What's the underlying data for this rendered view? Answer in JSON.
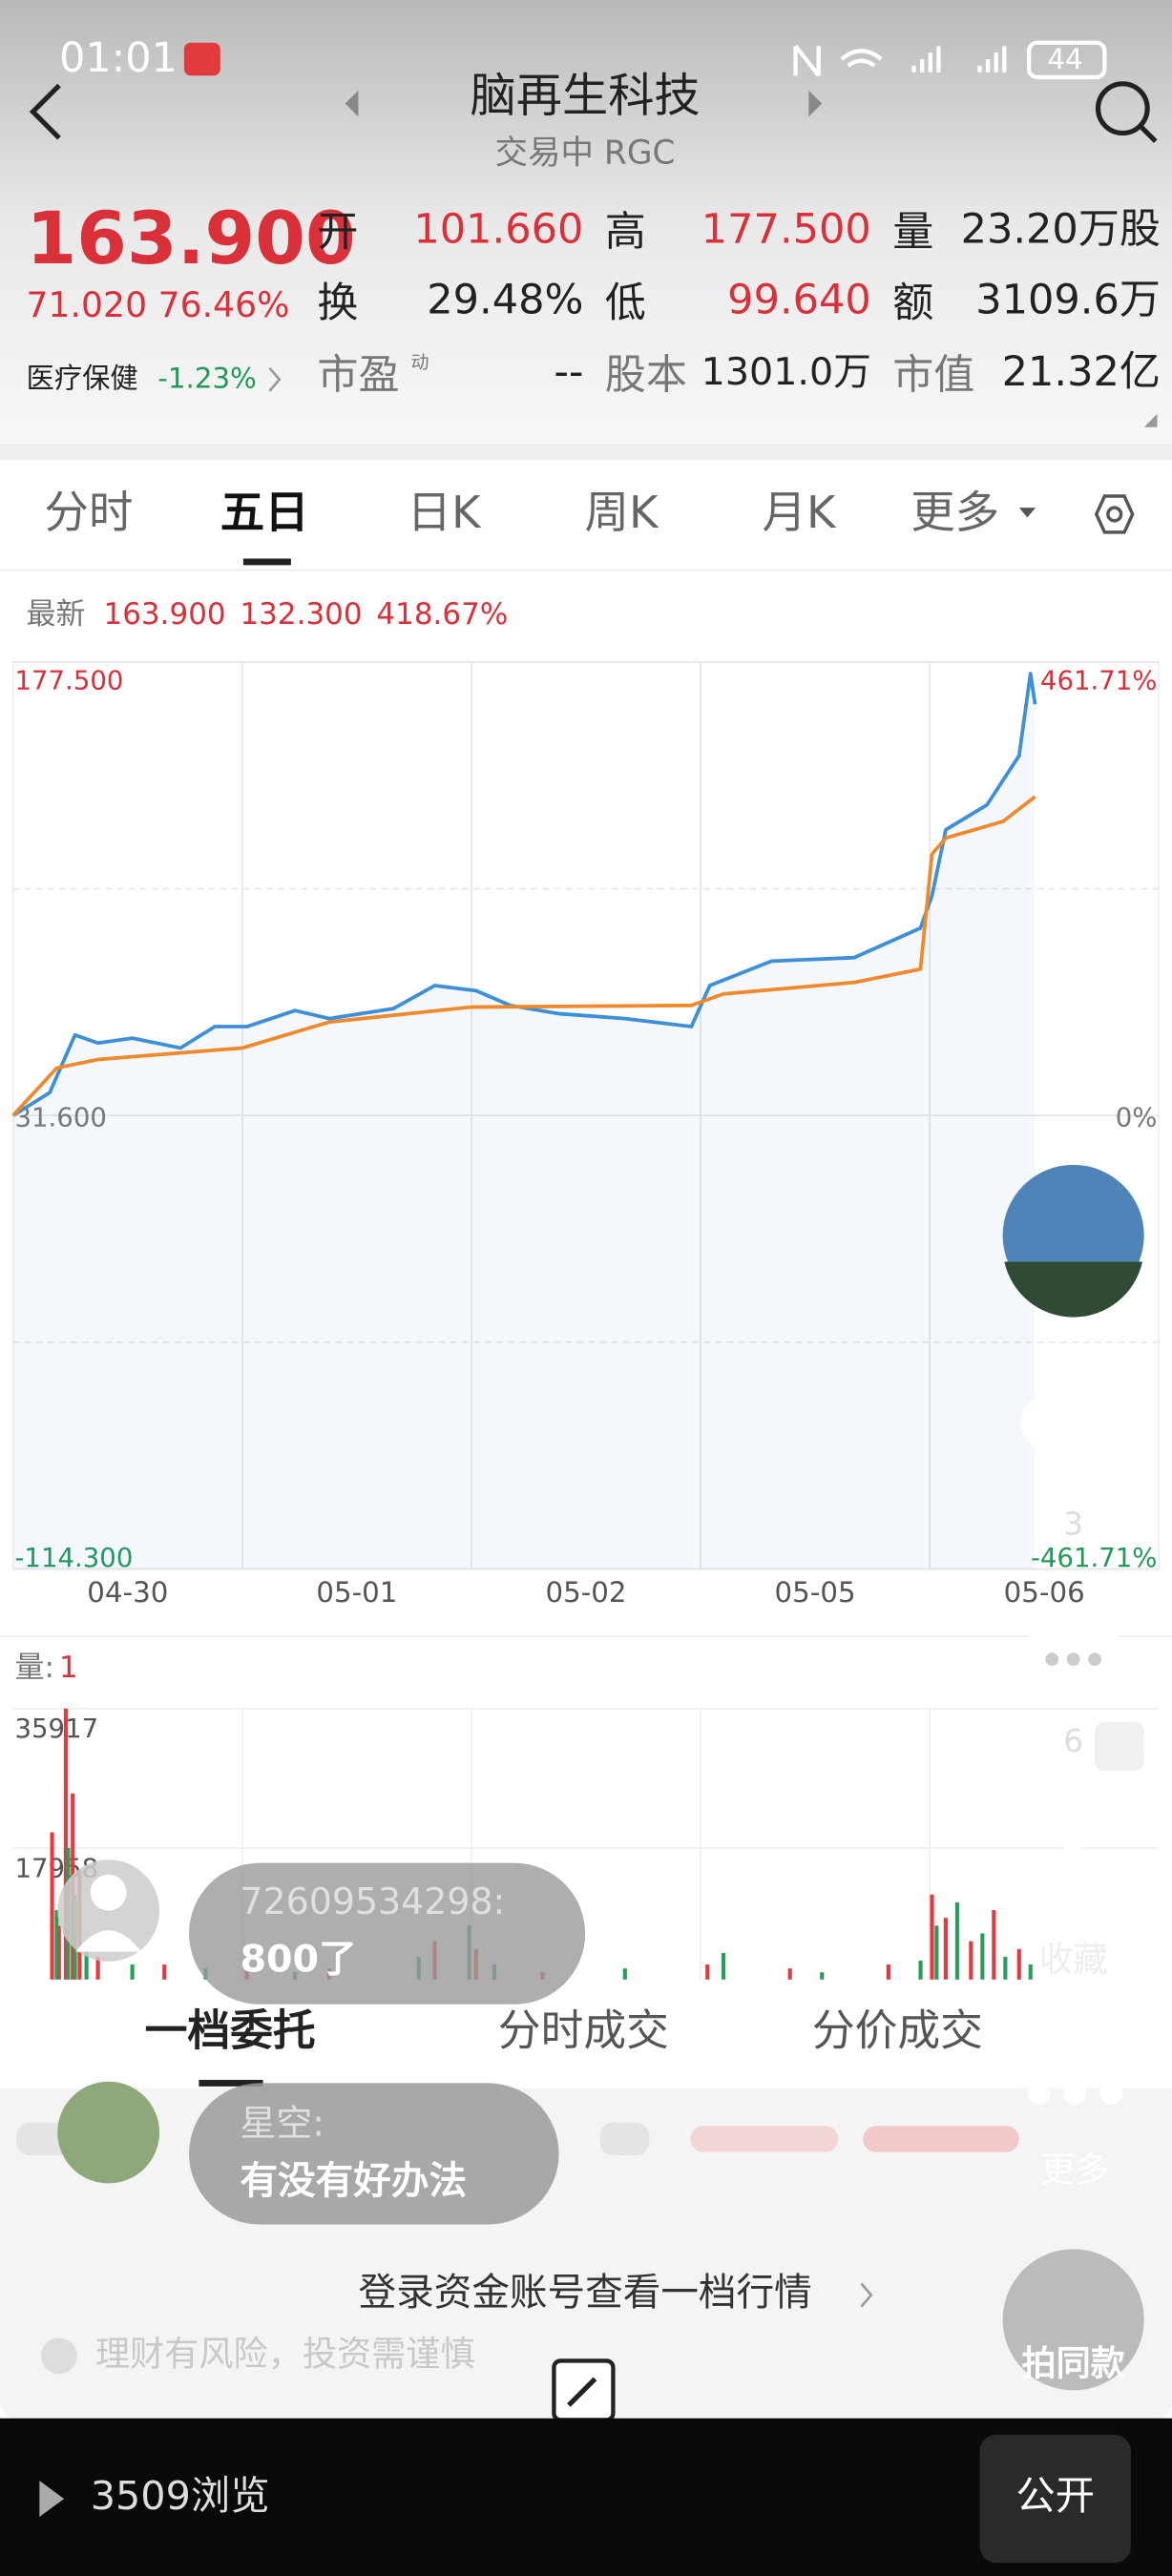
{
  "status_bar": {
    "time": "01:01",
    "battery": "44"
  },
  "header": {
    "title": "脑再生科技",
    "subtitle": "交易中 RGC"
  },
  "quote": {
    "price": "163.900",
    "change": "71.020 76.46%",
    "open_label": "开",
    "open": "101.660",
    "high_label": "高",
    "high": "177.500",
    "volume_label": "量",
    "volume": "23.20万股",
    "turnover_label": "换",
    "turnover": "29.48%",
    "low_label": "低",
    "low": "99.640",
    "amount_label": "额",
    "amount": "3109.6万",
    "sector": "医疗保健",
    "sector_change": "-1.23%",
    "pe_label": "市盈",
    "pe_sup": "动",
    "pe": "--",
    "shares_label": "股本",
    "shares": "1301.0万",
    "cap_label": "市值",
    "cap": "21.32亿"
  },
  "tabs": [
    "分时",
    "五日",
    "日K",
    "周K",
    "月K",
    "更多"
  ],
  "latest": {
    "label": "最新",
    "price": "163.900",
    "avg": "132.300",
    "pct": "418.67%"
  },
  "volume_header": {
    "label": "量:",
    "value": "1"
  },
  "chart_data": [
    {
      "type": "line",
      "xlim": [
        0,
        5
      ],
      "xticks": [
        {
          "value": 0.5,
          "label": "04-30"
        },
        {
          "value": 1.5,
          "label": "05-01"
        },
        {
          "value": 2.5,
          "label": "05-02"
        },
        {
          "value": 3.5,
          "label": "05-05"
        },
        {
          "value": 4.5,
          "label": "05-06"
        }
      ],
      "xgrid_lines": [
        1,
        2,
        3,
        4
      ],
      "ylim": [
        -114.3,
        177.5
      ],
      "yticks": [
        {
          "value": 177.5,
          "label": "177.500"
        },
        {
          "value": 31.6,
          "label": "31.600"
        },
        {
          "value": -114.3,
          "label": "-114.300"
        }
      ],
      "ygrid_lines": [
        104.55,
        -41.35
      ],
      "y2lim": [
        -461.71,
        461.71
      ],
      "y2ticks": [
        {
          "value": 461.71,
          "label": "461.71%"
        },
        {
          "value": 0,
          "label": "0%"
        },
        {
          "value": -461.71,
          "label": "-461.71%"
        }
      ],
      "grid": true,
      "series": [
        {
          "color": "#3d8fd8",
          "x": [
            0,
            0.16,
            0.27,
            0.37,
            0.52,
            0.73,
            0.88,
            1.02,
            1.23,
            1.38,
            1.66,
            1.84,
            2.02,
            2.17,
            2.38,
            2.67,
            2.96,
            3.04,
            3.31,
            3.67,
            3.96,
            4.01,
            4.07,
            4.25,
            4.39,
            4.44,
            4.46
          ],
          "values": [
            31.6,
            39.0,
            57.5,
            54.9,
            56.5,
            53.3,
            60.2,
            60.2,
            65.4,
            62.8,
            66.0,
            73.4,
            71.8,
            67.0,
            64.4,
            62.8,
            60.2,
            73.4,
            81.3,
            82.4,
            91.9,
            102.4,
            123.6,
            131.5,
            147.4,
            173.8,
            163.9
          ]
        },
        {
          "color": "#f0892c",
          "x": [
            0,
            0.19,
            0.37,
            1.0,
            1.38,
            2.0,
            2.96,
            3.1,
            3.67,
            3.96,
            4.01,
            4.07,
            4.32,
            4.46
          ],
          "values": [
            31.6,
            46.9,
            49.6,
            53.3,
            61.7,
            66.5,
            67.0,
            70.7,
            74.4,
            78.7,
            115.7,
            120.9,
            126.2,
            134.2
          ]
        }
      ]
    },
    {
      "type": "bar",
      "xlim": [
        0,
        5
      ],
      "ylim": [
        0,
        35917
      ],
      "yticks": [
        35917,
        17958
      ],
      "grid": true,
      "series": [
        {
          "color": "#e8383d",
          "x": [
            0.17,
            0.2,
            0.23,
            0.26,
            0.29,
            0.37,
            0.66,
            1.02,
            1.38,
            1.84,
            2.02,
            2.31,
            3.03,
            3.39,
            3.82,
            4.01,
            4.07,
            4.18,
            4.28,
            4.39
          ],
          "values": [
            20000,
            8000,
            35917,
            25000,
            15000,
            4000,
            3000,
            3500,
            2500,
            6000,
            5000,
            2000,
            3000,
            2500,
            3000,
            12000,
            9000,
            6000,
            10000,
            5000
          ]
        },
        {
          "color": "#2a9d5c",
          "x": [
            0.19,
            0.24,
            0.27,
            0.32,
            0.52,
            0.84,
            1.23,
            1.77,
            1.99,
            2.1,
            2.67,
            3.1,
            3.53,
            3.96,
            4.03,
            4.12,
            4.23,
            4.33,
            4.44
          ],
          "values": [
            10000,
            18000,
            12000,
            6000,
            3000,
            2500,
            2000,
            4000,
            8000,
            3000,
            2500,
            4500,
            2000,
            3500,
            8000,
            11000,
            7000,
            4000,
            3000
          ]
        }
      ]
    }
  ],
  "comments": [
    {
      "user": "72609534298:",
      "text": "800了"
    },
    {
      "user": "星空:",
      "text": "有没有好办法"
    }
  ],
  "sidebar": {
    "likes": "3",
    "comments": "6",
    "favorite": "收藏",
    "more": "更多",
    "same": "拍同款"
  },
  "panel": {
    "tabs": [
      "一档委托",
      "分时成交",
      "分价成交"
    ],
    "login": "登录资金账号查看一档行情",
    "risk": "理财有风险，投资需谨慎"
  },
  "footer": {
    "views": "3509浏览",
    "button": "公开"
  }
}
